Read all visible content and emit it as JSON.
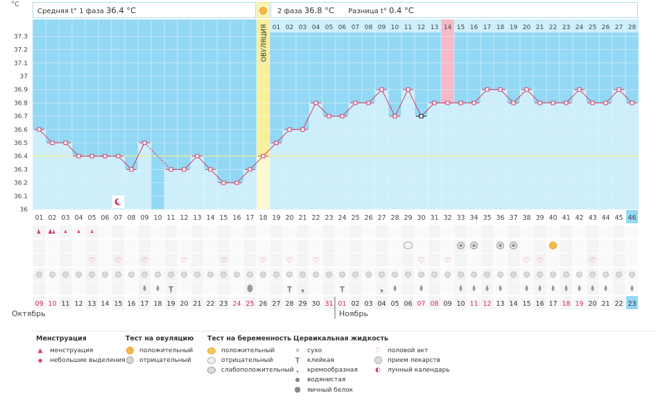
{
  "units": "°C",
  "phase1": {
    "label": "Средняя t° 1 фаза",
    "value": "36.4 °C"
  },
  "phase2": {
    "label": "2 фаза",
    "value": "36.8 °C"
  },
  "diff": {
    "label": "Разница t°",
    "value": "0.4 °C"
  },
  "ovulation_label": "ОВУЛЯЦИЯ",
  "month1": "Октябрь",
  "month2": "Ноябрь",
  "colors": {
    "plot_bg": "#93d8f4",
    "bar": "#cdeefb",
    "line": "#d23a63",
    "ovulation": "#f8ef9b",
    "today": "#f7b8c9",
    "cover_line": "#eeea99"
  },
  "chart_data": {
    "type": "line",
    "title": "",
    "xlabel": "",
    "ylabel": "°C",
    "ylim": [
      36,
      37.3
    ],
    "yticks": [
      "36",
      "36.1",
      "36.2",
      "36.3",
      "36.4",
      "36.5",
      "36.6",
      "36.7",
      "36.8",
      "36.9",
      "37",
      "37.1",
      "37.2",
      "37.3"
    ],
    "cover_line": 36.4,
    "ovulation_day": 18,
    "days": [
      "01",
      "02",
      "03",
      "04",
      "05",
      "06",
      "07",
      "08",
      "09",
      "10",
      "11",
      "12",
      "13",
      "14",
      "15",
      "16",
      "17",
      "18",
      "19",
      "20",
      "21",
      "22",
      "23",
      "24",
      "25",
      "26",
      "27",
      "28",
      "29",
      "30",
      "31",
      "32",
      "33",
      "34",
      "35",
      "36",
      "37",
      "38",
      "39",
      "40",
      "41",
      "42",
      "43",
      "44",
      "45",
      "46"
    ],
    "dates": [
      "09",
      "10",
      "11",
      "12",
      "13",
      "14",
      "15",
      "16",
      "17",
      "18",
      "19",
      "20",
      "21",
      "22",
      "23",
      "24",
      "25",
      "26",
      "27",
      "28",
      "29",
      "30",
      "31",
      "01",
      "02",
      "03",
      "04",
      "05",
      "06",
      "07",
      "08",
      "09",
      "10",
      "11",
      "12",
      "13",
      "14",
      "15",
      "16",
      "17",
      "18",
      "19",
      "20",
      "21",
      "22",
      "23"
    ],
    "red_dates": [
      1,
      2,
      16,
      17,
      23,
      24,
      30,
      31,
      34,
      35,
      41,
      42,
      48,
      49
    ],
    "phase2_days": [
      "01",
      "02",
      "03",
      "04",
      "05",
      "06",
      "07",
      "08",
      "09",
      "10",
      "11",
      "12",
      "13",
      "14",
      "15",
      "16",
      "17",
      "18",
      "19",
      "20",
      "21",
      "22",
      "23",
      "24",
      "25",
      "26",
      "27",
      "28"
    ],
    "highlight_phase2_index": 13,
    "temps": [
      36.6,
      36.5,
      36.5,
      36.4,
      36.4,
      36.4,
      36.4,
      36.3,
      36.5,
      null,
      36.3,
      36.3,
      36.4,
      36.3,
      36.2,
      36.2,
      36.3,
      36.4,
      36.5,
      36.6,
      36.6,
      36.8,
      36.7,
      36.7,
      36.8,
      36.8,
      36.9,
      36.7,
      36.9,
      36.7,
      36.8,
      36.8,
      36.8,
      36.8,
      36.9,
      36.9,
      36.8,
      36.9,
      36.8,
      36.8,
      36.8,
      36.9,
      36.8,
      36.8,
      36.9,
      36.8
    ],
    "series": [
      {
        "values": [
          36.6,
          36.5,
          36.5,
          36.4,
          36.4,
          36.4,
          36.4,
          36.3,
          36.5,
          null,
          36.3,
          36.3,
          36.4,
          36.3,
          36.2,
          36.2,
          36.3,
          36.4,
          36.5,
          36.6,
          36.6,
          36.8,
          36.7,
          36.7,
          36.8,
          36.8,
          36.9,
          36.7,
          36.9,
          36.7,
          36.8,
          36.8,
          36.8,
          36.8,
          36.9,
          36.9,
          36.8,
          36.9,
          36.8,
          36.8,
          36.8,
          36.9,
          36.8,
          36.8,
          36.9,
          36.8
        ]
      }
    ],
    "excluded_days": [
      30
    ],
    "moon_day": 7,
    "current_day": 46,
    "marker_rows": {
      "menstruation": {
        "1": "mens",
        "2": "mens-heavy",
        "3": "mens-small",
        "4": "mens-small",
        "5": "mens-small"
      },
      "tests": {
        "29": "preg-neg",
        "33": "ov-neg",
        "34": "ov-neg",
        "36": "ov-neg",
        "37": "ov-neg",
        "40": "ov-pos"
      },
      "intercourse": [
        5,
        7,
        9,
        12,
        15,
        18,
        20,
        22,
        30,
        32,
        38,
        39,
        43
      ],
      "medication": [
        1,
        2,
        3,
        4,
        5,
        6,
        7,
        8,
        9,
        10,
        11,
        12,
        13,
        14,
        15,
        16,
        17,
        18,
        19,
        20,
        21,
        22,
        23,
        24,
        25,
        26,
        27,
        28,
        29,
        30,
        31,
        32,
        33,
        34,
        35,
        36,
        37,
        38,
        39,
        40,
        41,
        42,
        43,
        44,
        45,
        46
      ],
      "fluid": {
        "9": "water",
        "10": "water",
        "11": "sticky",
        "17": "egg",
        "20": "sticky",
        "21": "creamy",
        "24": "sticky",
        "27": "creamy",
        "28": "water",
        "30": "water",
        "33": "water",
        "34": "water",
        "35": "water",
        "36": "water",
        "38": "water",
        "39": "water",
        "40": "water",
        "41": "water",
        "42": "water",
        "43": "water",
        "44": "water",
        "46": "water"
      }
    }
  },
  "legend": {
    "menstruation": {
      "title": "Менструация",
      "items": [
        "менструация",
        "небольшие выделения"
      ]
    },
    "ovulation_test": {
      "title": "Тест на овуляцию",
      "items": [
        "положительный",
        "отрицательный"
      ]
    },
    "pregnancy_test": {
      "title": "Тест на беременность",
      "items": [
        "положительный",
        "отрицательный",
        "слабоположительный"
      ]
    },
    "cervical": {
      "title": "Цервикальная жидкость",
      "items": [
        "сухо",
        "клейкая",
        "кремообразная",
        "водянистая",
        "яичный белок"
      ]
    },
    "other": {
      "items": [
        "половой акт",
        "прием лекарств",
        "лунный календарь"
      ]
    }
  }
}
